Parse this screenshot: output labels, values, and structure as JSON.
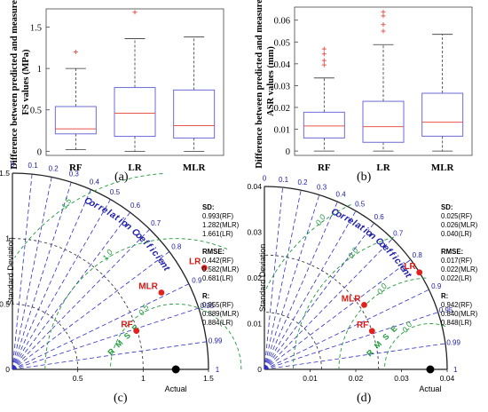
{
  "colors": {
    "box": "#6b6bd8",
    "median": "#e8554e",
    "outlier": "#e8554e",
    "whisker": "#333333",
    "corr_line": "#2e2ec8",
    "sd_arc": "#222222",
    "rmse_arc": "#1f9a3a",
    "point": "#e0211c",
    "label_red": "#d81a14",
    "label_blue": "#2020a8"
  },
  "panels": {
    "a": {
      "caption": "(a)"
    },
    "b": {
      "caption": "(b)"
    },
    "c": {
      "caption": "(c)"
    },
    "d": {
      "caption": "(d)"
    }
  },
  "chart_data": [
    {
      "id": "a",
      "type": "box",
      "ylabel": "Difference between predicted and measured FS values (MPa)",
      "categories": [
        "RF",
        "LR",
        "MLR"
      ],
      "ylim": [
        -0.05,
        1.72
      ],
      "yticks": [
        "0",
        "0.5",
        "1",
        "1.5"
      ],
      "ytick_values": [
        0,
        0.5,
        1,
        1.5
      ],
      "boxes": [
        {
          "name": "RF",
          "min": 0.02,
          "q1": 0.21,
          "median": 0.27,
          "q3": 0.54,
          "max": 1.0,
          "outliers": [
            1.2
          ]
        },
        {
          "name": "LR",
          "min": 0.0,
          "q1": 0.18,
          "median": 0.46,
          "q3": 0.77,
          "max": 1.36,
          "outliers": [
            1.68
          ]
        },
        {
          "name": "MLR",
          "min": 0.0,
          "q1": 0.16,
          "median": 0.31,
          "q3": 0.74,
          "max": 1.38,
          "outliers": []
        }
      ]
    },
    {
      "id": "b",
      "type": "box",
      "ylabel": "Difference between predicted and measured ASR values (mm)",
      "categories": [
        "RF",
        "LR",
        "MLR"
      ],
      "ylim": [
        -0.002,
        0.066
      ],
      "yticks": [
        "0",
        "0.01",
        "0.02",
        "0.03",
        "0.04",
        "0.05",
        "0.06"
      ],
      "ytick_values": [
        0,
        0.01,
        0.02,
        0.03,
        0.04,
        0.05,
        0.06
      ],
      "boxes": [
        {
          "name": "RF",
          "min": 0.0,
          "q1": 0.006,
          "median": 0.0115,
          "q3": 0.0178,
          "max": 0.0335,
          "outliers": [
            0.0395,
            0.0415,
            0.0445,
            0.0468
          ]
        },
        {
          "name": "LR",
          "min": 0.0,
          "q1": 0.004,
          "median": 0.0112,
          "q3": 0.0228,
          "max": 0.0488,
          "outliers": [
            0.055,
            0.058,
            0.062,
            0.0638
          ]
        },
        {
          "name": "MLR",
          "min": 0.0,
          "q1": 0.0068,
          "median": 0.0132,
          "q3": 0.0265,
          "max": 0.0535,
          "outliers": []
        }
      ]
    },
    {
      "id": "c",
      "type": "taylor",
      "ylabel": "Standard Deviation",
      "xlabel": "Actual",
      "corr_title": "Correlation Coefficient",
      "rmse_title": "R M S E",
      "max": 1.5,
      "ticks": [
        "0.5",
        "1",
        "1.5"
      ],
      "tick_values": [
        0.5,
        1,
        1.5
      ],
      "yticks": [
        "0",
        "0.5",
        "1",
        "1.5"
      ],
      "ytick_values": [
        0,
        0.5,
        1,
        1.5
      ],
      "corr_labels": [
        "0",
        "0.1",
        "0.2",
        "0.3",
        "0.4",
        "0.5",
        "0.6",
        "0.7",
        "0.8",
        "0.9",
        "0.95",
        "0.99",
        "1"
      ],
      "corr_values": [
        0,
        0.1,
        0.2,
        0.3,
        0.4,
        0.5,
        0.6,
        0.7,
        0.8,
        0.9,
        0.95,
        0.99,
        1
      ],
      "sd_arcs": [
        0.5,
        1.0
      ],
      "actual_sd": 1.25,
      "rmse_levels": [
        0.5,
        1.0,
        1.5
      ],
      "rmse_labels": [
        "0.5",
        "1.0",
        "1.5"
      ],
      "points": [
        {
          "name": "RF",
          "sd": 0.993,
          "r": 0.955
        },
        {
          "name": "MLR",
          "sd": 1.282,
          "r": 0.889
        },
        {
          "name": "LR",
          "sd": 1.661,
          "r": 0.884
        }
      ],
      "stats": {
        "sd_title": "SD:",
        "sd": [
          "0.993(RF)",
          "1.282(MLR)",
          "1.661(LR)"
        ],
        "rmse_title": "RMSE:",
        "rmse": [
          "0.442(RF)",
          "0.582(MLR)",
          "0.681(LR)"
        ],
        "r_title": "R:",
        "r": [
          "0.955(RF)",
          "0.889(MLR)",
          "0.884(LR)"
        ]
      }
    },
    {
      "id": "d",
      "type": "taylor",
      "ylabel": "Standard Deviation",
      "xlabel": "Actual",
      "corr_title": "Correlation Coefficient",
      "rmse_title": "R M S E",
      "max": 0.04,
      "ticks": [
        "0.01",
        "0.02",
        "0.03",
        "0.04"
      ],
      "tick_values": [
        0.01,
        0.02,
        0.03,
        0.04
      ],
      "yticks": [
        "0",
        "0.01",
        "0.02",
        "0.03",
        "0.04"
      ],
      "ytick_values": [
        0,
        0.01,
        0.02,
        0.03,
        0.04
      ],
      "corr_labels": [
        "0",
        "0.1",
        "0.2",
        "0.3",
        "0.4",
        "0.5",
        "0.6",
        "0.7",
        "0.8",
        "0.9",
        "0.95",
        "0.99",
        "1"
      ],
      "corr_values": [
        0,
        0.1,
        0.2,
        0.3,
        0.4,
        0.5,
        0.6,
        0.7,
        0.8,
        0.9,
        0.95,
        0.99,
        1
      ],
      "sd_arcs": [
        0.0125,
        0.025
      ],
      "actual_sd": 0.0363,
      "rmse_levels": [
        0.01,
        0.02,
        0.03,
        0.04
      ],
      "rmse_labels": [
        "0.0",
        "0.0",
        "0.0",
        "0.0"
      ],
      "points": [
        {
          "name": "RF",
          "sd": 0.025,
          "r": 0.942
        },
        {
          "name": "MLR",
          "sd": 0.026,
          "r": 0.84
        },
        {
          "name": "LR",
          "sd": 0.04,
          "r": 0.848
        }
      ],
      "stats": {
        "sd_title": "SD:",
        "sd": [
          "0.025(RF)",
          "0.026(MLR)",
          "0.040(LR)"
        ],
        "rmse_title": "RMSE:",
        "rmse": [
          "0.017(RF)",
          "0.022(MLR)",
          "0.022(LR)"
        ],
        "r_title": "R:",
        "r": [
          "0.942(RF)",
          "0.840(MLR)",
          "0.848(LR)"
        ]
      }
    }
  ]
}
